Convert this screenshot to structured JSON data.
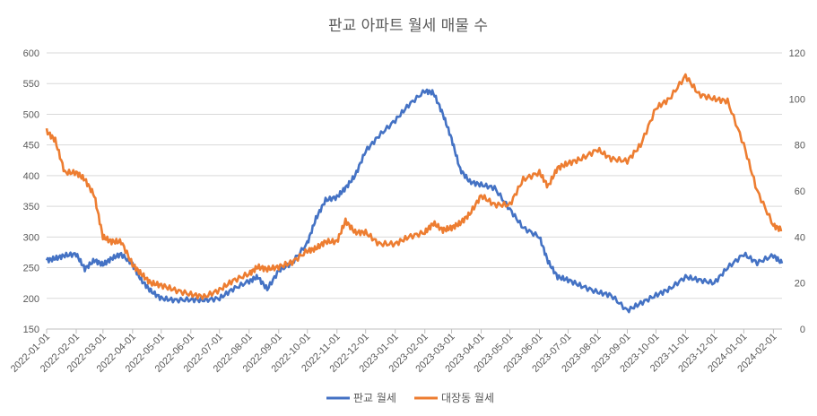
{
  "chart_data": {
    "type": "line",
    "title": "판교 아파트 월세 매물 수",
    "legend_position": "bottom",
    "grid": true,
    "x_ticks": [
      "2022-01-01",
      "2022-02-01",
      "2022-03-01",
      "2022-04-01",
      "2022-05-01",
      "2022-06-01",
      "2022-07-01",
      "2022-08-01",
      "2022-09-01",
      "2022-10-01",
      "2022-11-01",
      "2022-12-01",
      "2023-01-01",
      "2023-02-01",
      "2023-03-01",
      "2023-04-01",
      "2023-05-01",
      "2023-06-01",
      "2023-07-01",
      "2023-08-01",
      "2023-09-01",
      "2023-10-01",
      "2023-11-01",
      "2023-12-01",
      "2024-01-01",
      "2024-02-01"
    ],
    "y_left": {
      "min": 150,
      "max": 600,
      "step": 50,
      "ticks": [
        "150",
        "200",
        "250",
        "300",
        "350",
        "400",
        "450",
        "500",
        "550",
        "600"
      ]
    },
    "y_right": {
      "min": 0,
      "max": 120,
      "step": 20,
      "ticks": [
        "0",
        "20",
        "40",
        "60",
        "80",
        "100",
        "120"
      ]
    },
    "series": [
      {
        "name": "판교 월세",
        "axis": "left",
        "color": "#4472C4",
        "points": [
          [
            "2022-01-01",
            262
          ],
          [
            "2022-01-10",
            265
          ],
          [
            "2022-01-20",
            270
          ],
          [
            "2022-02-01",
            272
          ],
          [
            "2022-02-10",
            248
          ],
          [
            "2022-02-20",
            262
          ],
          [
            "2022-03-01",
            255
          ],
          [
            "2022-03-10",
            265
          ],
          [
            "2022-03-20",
            272
          ],
          [
            "2022-04-01",
            255
          ],
          [
            "2022-04-10",
            230
          ],
          [
            "2022-04-20",
            212
          ],
          [
            "2022-05-01",
            200
          ],
          [
            "2022-05-15",
            197
          ],
          [
            "2022-06-01",
            198
          ],
          [
            "2022-06-15",
            197
          ],
          [
            "2022-07-01",
            200
          ],
          [
            "2022-07-15",
            215
          ],
          [
            "2022-08-01",
            228
          ],
          [
            "2022-08-10",
            235
          ],
          [
            "2022-08-20",
            215
          ],
          [
            "2022-09-01",
            245
          ],
          [
            "2022-09-15",
            258
          ],
          [
            "2022-10-01",
            290
          ],
          [
            "2022-10-10",
            330
          ],
          [
            "2022-10-20",
            360
          ],
          [
            "2022-11-01",
            365
          ],
          [
            "2022-11-10",
            380
          ],
          [
            "2022-11-20",
            400
          ],
          [
            "2022-12-01",
            440
          ],
          [
            "2022-12-15",
            465
          ],
          [
            "2023-01-01",
            490
          ],
          [
            "2023-01-15",
            515
          ],
          [
            "2023-02-01",
            538
          ],
          [
            "2023-02-10",
            535
          ],
          [
            "2023-02-20",
            500
          ],
          [
            "2023-03-01",
            460
          ],
          [
            "2023-03-10",
            410
          ],
          [
            "2023-03-20",
            390
          ],
          [
            "2023-04-01",
            385
          ],
          [
            "2023-04-15",
            380
          ],
          [
            "2023-05-01",
            345
          ],
          [
            "2023-05-15",
            315
          ],
          [
            "2023-06-01",
            300
          ],
          [
            "2023-06-10",
            260
          ],
          [
            "2023-06-20",
            235
          ],
          [
            "2023-07-01",
            230
          ],
          [
            "2023-07-15",
            220
          ],
          [
            "2023-08-01",
            210
          ],
          [
            "2023-08-15",
            205
          ],
          [
            "2023-09-01",
            180
          ],
          [
            "2023-09-15",
            192
          ],
          [
            "2023-10-01",
            205
          ],
          [
            "2023-10-15",
            215
          ],
          [
            "2023-11-01",
            235
          ],
          [
            "2023-11-15",
            230
          ],
          [
            "2023-12-01",
            225
          ],
          [
            "2023-12-15",
            250
          ],
          [
            "2024-01-01",
            272
          ],
          [
            "2024-01-15",
            258
          ],
          [
            "2024-02-01",
            270
          ],
          [
            "2024-02-10",
            257
          ]
        ]
      },
      {
        "name": "대장동 월세",
        "axis": "right",
        "color": "#ED7D31",
        "points": [
          [
            "2022-01-01",
            86
          ],
          [
            "2022-01-10",
            82
          ],
          [
            "2022-01-20",
            68
          ],
          [
            "2022-02-01",
            68
          ],
          [
            "2022-02-10",
            65
          ],
          [
            "2022-02-20",
            58
          ],
          [
            "2022-03-01",
            40
          ],
          [
            "2022-03-10",
            38
          ],
          [
            "2022-03-20",
            38
          ],
          [
            "2022-04-01",
            28
          ],
          [
            "2022-04-10",
            24
          ],
          [
            "2022-04-20",
            20
          ],
          [
            "2022-05-01",
            19
          ],
          [
            "2022-05-15",
            17
          ],
          [
            "2022-06-01",
            15
          ],
          [
            "2022-06-15",
            14
          ],
          [
            "2022-07-01",
            17
          ],
          [
            "2022-07-15",
            21
          ],
          [
            "2022-08-01",
            24
          ],
          [
            "2022-08-10",
            27
          ],
          [
            "2022-08-20",
            26
          ],
          [
            "2022-09-01",
            27
          ],
          [
            "2022-09-15",
            29
          ],
          [
            "2022-10-01",
            34
          ],
          [
            "2022-10-10",
            35
          ],
          [
            "2022-10-20",
            38
          ],
          [
            "2022-11-01",
            38
          ],
          [
            "2022-11-10",
            47
          ],
          [
            "2022-11-20",
            42
          ],
          [
            "2022-12-01",
            42
          ],
          [
            "2022-12-15",
            37
          ],
          [
            "2023-01-01",
            37
          ],
          [
            "2023-01-15",
            40
          ],
          [
            "2023-02-01",
            42
          ],
          [
            "2023-02-10",
            46
          ],
          [
            "2023-02-20",
            43
          ],
          [
            "2023-03-01",
            44
          ],
          [
            "2023-03-10",
            46
          ],
          [
            "2023-03-20",
            50
          ],
          [
            "2023-04-01",
            58
          ],
          [
            "2023-04-15",
            54
          ],
          [
            "2023-05-01",
            54
          ],
          [
            "2023-05-15",
            65
          ],
          [
            "2023-06-01",
            68
          ],
          [
            "2023-06-10",
            62
          ],
          [
            "2023-06-20",
            70
          ],
          [
            "2023-07-01",
            72
          ],
          [
            "2023-07-15",
            74
          ],
          [
            "2023-08-01",
            78
          ],
          [
            "2023-08-15",
            74
          ],
          [
            "2023-09-01",
            73
          ],
          [
            "2023-09-15",
            80
          ],
          [
            "2023-10-01",
            96
          ],
          [
            "2023-10-15",
            100
          ],
          [
            "2023-11-01",
            110
          ],
          [
            "2023-11-15",
            102
          ],
          [
            "2023-12-01",
            100
          ],
          [
            "2023-12-15",
            99
          ],
          [
            "2024-01-01",
            80
          ],
          [
            "2024-01-15",
            60
          ],
          [
            "2024-02-01",
            45
          ],
          [
            "2024-02-10",
            43
          ]
        ]
      }
    ]
  }
}
